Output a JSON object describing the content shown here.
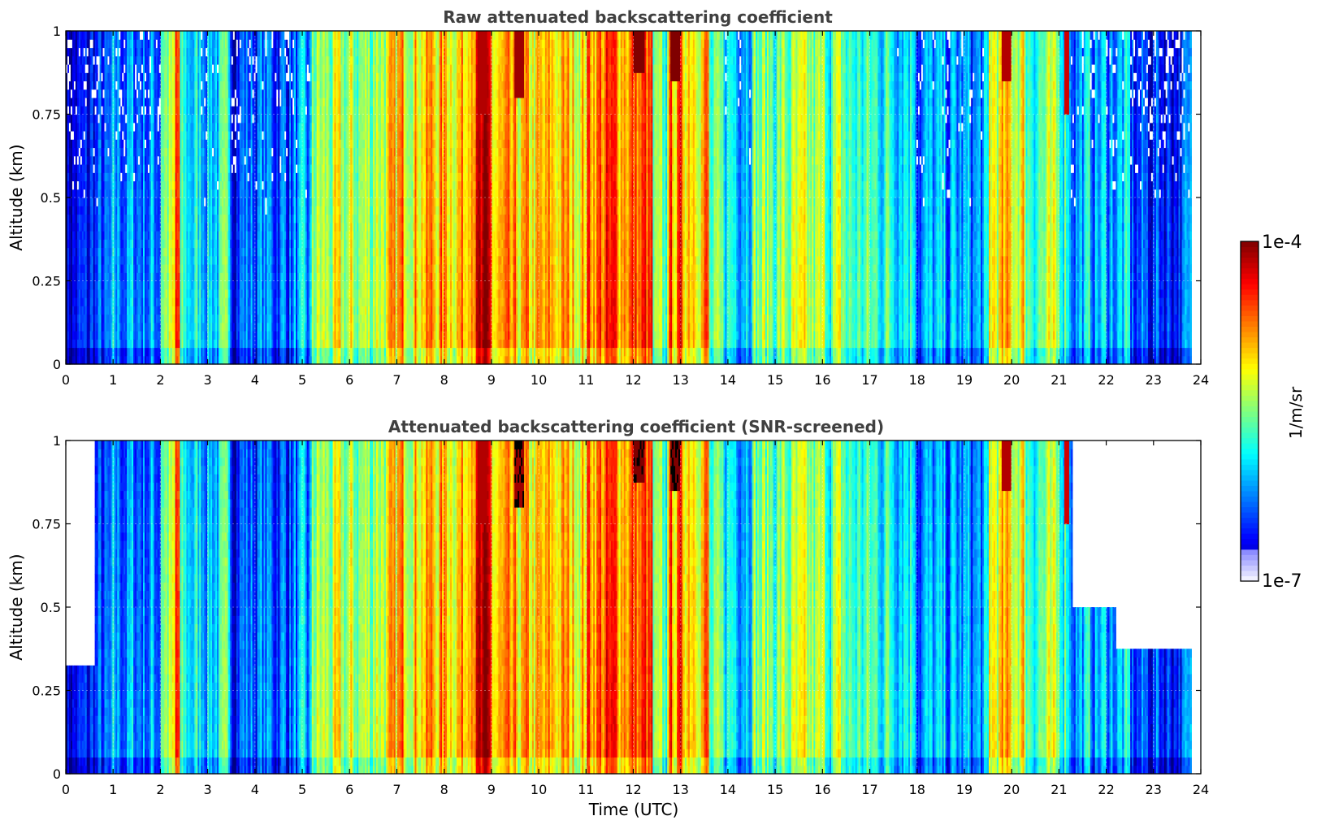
{
  "chart_data": [
    {
      "type": "heatmap",
      "title": "Raw attenuated backscattering coefficient",
      "xlabel": "",
      "ylabel": "Altitude (km)",
      "xlim": [
        0,
        24
      ],
      "ylim": [
        0,
        1
      ],
      "x_ticks": [
        "0",
        "1",
        "2",
        "3",
        "4",
        "5",
        "6",
        "7",
        "8",
        "9",
        "10",
        "11",
        "12",
        "13",
        "14",
        "15",
        "16",
        "17",
        "18",
        "19",
        "20",
        "21",
        "22",
        "23",
        "24"
      ],
      "y_ticks": [
        "0",
        "0.25",
        "0.5",
        "0.75",
        "1"
      ],
      "grid": true,
      "data_extent_hours": [
        0,
        23.8
      ],
      "profiles": [
        {
          "t": [
            0.0,
            0.5
          ],
          "level": 0.12
        },
        {
          "t": [
            0.5,
            1.0
          ],
          "level": 0.18
        },
        {
          "t": [
            1.0,
            2.0
          ],
          "level": 0.28
        },
        {
          "t": [
            2.0,
            2.4
          ],
          "level": 0.55
        },
        {
          "t": [
            2.3,
            2.4
          ],
          "level": 0.82
        },
        {
          "t": [
            2.4,
            3.5
          ],
          "level": 0.38
        },
        {
          "t": [
            3.5,
            5.2
          ],
          "level": 0.25
        },
        {
          "t": [
            5.2,
            6.5
          ],
          "level": 0.55
        },
        {
          "t": [
            6.5,
            7.0
          ],
          "level": 0.62
        },
        {
          "t": [
            7.0,
            8.5
          ],
          "level": 0.72
        },
        {
          "t": [
            8.5,
            9.0
          ],
          "level": 0.88
        },
        {
          "t": [
            9.0,
            10.2
          ],
          "level": 0.66
        },
        {
          "t": [
            10.2,
            11.0
          ],
          "level": 0.7
        },
        {
          "t": [
            11.0,
            12.4
          ],
          "level": 0.8
        },
        {
          "t": [
            12.4,
            12.7
          ],
          "level": 0.45
        },
        {
          "t": [
            12.7,
            13.6
          ],
          "level": 0.76
        },
        {
          "t": [
            13.6,
            14.5
          ],
          "level": 0.42
        },
        {
          "t": [
            14.5,
            16.5
          ],
          "level": 0.52
        },
        {
          "t": [
            16.5,
            18.0
          ],
          "level": 0.45
        },
        {
          "t": [
            18.0,
            19.5
          ],
          "level": 0.28
        },
        {
          "t": [
            19.5,
            20.3
          ],
          "level": 0.65
        },
        {
          "t": [
            20.3,
            21.2
          ],
          "level": 0.5
        },
        {
          "t": [
            21.2,
            22.5
          ],
          "level": 0.32
        },
        {
          "t": [
            22.5,
            23.8
          ],
          "level": 0.2
        }
      ],
      "clouds": [
        {
          "t": [
            8.7,
            8.9
          ],
          "alt": [
            0.75,
            1.0
          ],
          "level": 0.95
        },
        {
          "t": [
            9.5,
            9.7
          ],
          "alt": [
            0.8,
            1.0
          ],
          "level": 0.97
        },
        {
          "t": [
            12.0,
            12.25
          ],
          "alt": [
            0.88,
            1.0
          ],
          "level": 1.0
        },
        {
          "t": [
            12.8,
            13.0
          ],
          "alt": [
            0.85,
            1.0
          ],
          "level": 1.0
        },
        {
          "t": [
            19.8,
            20.0
          ],
          "alt": [
            0.86,
            1.0
          ],
          "level": 0.95
        },
        {
          "t": [
            21.1,
            21.2
          ],
          "alt": [
            0.75,
            1.0
          ],
          "level": 0.92
        }
      ]
    },
    {
      "type": "heatmap",
      "title": "Attenuated backscattering coefficient (SNR-screened)",
      "xlabel": "Time (UTC)",
      "ylabel": "Altitude (km)",
      "xlim": [
        0,
        24
      ],
      "ylim": [
        0,
        1
      ],
      "x_ticks": [
        "0",
        "1",
        "2",
        "3",
        "4",
        "5",
        "6",
        "7",
        "8",
        "9",
        "10",
        "11",
        "12",
        "13",
        "14",
        "15",
        "16",
        "17",
        "18",
        "19",
        "20",
        "21",
        "22",
        "23",
        "24"
      ],
      "y_ticks": [
        "0",
        "0.25",
        "0.5",
        "0.75",
        "1"
      ],
      "grid": true,
      "data_extent_hours": [
        0,
        23.8
      ],
      "screened_above_km": [
        {
          "t": [
            0.0,
            0.6
          ],
          "alt": 0.33
        },
        {
          "t": [
            21.3,
            22.2
          ],
          "alt": 0.5
        },
        {
          "t": [
            22.2,
            23.8
          ],
          "alt": 0.38
        }
      ]
    }
  ],
  "colorbar": {
    "min_label": "1e-7",
    "max_label": "1e-4",
    "unit": "1/m/sr",
    "colormap": "jet",
    "scale": "log"
  }
}
